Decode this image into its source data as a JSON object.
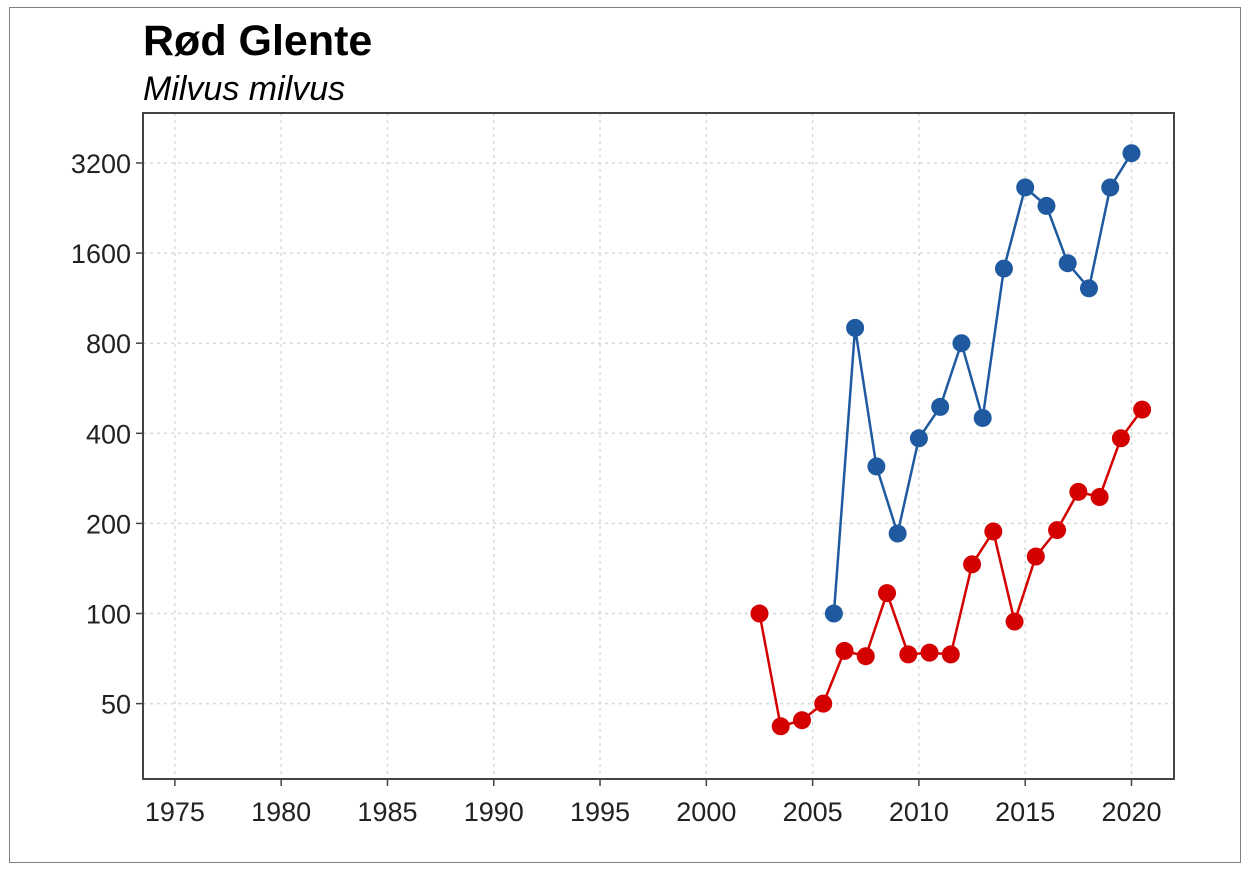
{
  "chart_data": {
    "type": "line",
    "title": "Rød Glente",
    "subtitle": "Milvus milvus",
    "xlabel": "",
    "ylabel": "",
    "y_scale": "log2",
    "xlim": [
      1973.5,
      2022
    ],
    "ylim": [
      28,
      4700
    ],
    "x_ticks": [
      1975,
      1980,
      1985,
      1990,
      1995,
      2000,
      2005,
      2010,
      2015,
      2020
    ],
    "y_ticks": [
      50,
      100,
      200,
      400,
      800,
      1600,
      3200
    ],
    "x_tick_labels": [
      "1975",
      "1980",
      "1985",
      "1990",
      "1995",
      "2000",
      "2005",
      "2010",
      "2015",
      "2020"
    ],
    "y_tick_labels": [
      "50",
      "100",
      "200",
      "400",
      "800",
      "1600",
      "3200"
    ],
    "grid": true,
    "series": [
      {
        "color": "#1f5aa0",
        "x": [
          2006,
          2007,
          2008,
          2009,
          2010,
          2011,
          2012,
          2013,
          2014,
          2015,
          2016,
          2017,
          2018,
          2019,
          2020
        ],
        "values": [
          100,
          900,
          310,
          185,
          385,
          490,
          800,
          450,
          1420,
          2650,
          2300,
          1480,
          1220,
          2650,
          3450
        ]
      },
      {
        "color": "#d40000",
        "x": [
          2002.5,
          2003.5,
          2004.5,
          2005.5,
          2006.5,
          2007.5,
          2008.5,
          2009.5,
          2010.5,
          2011.5,
          2012.5,
          2013.5,
          2014.5,
          2015.5,
          2016.5,
          2017.5,
          2018.5,
          2019.5,
          2020.5
        ],
        "values": [
          100,
          42,
          44,
          50,
          75,
          72,
          117,
          73,
          74,
          73,
          146,
          188,
          94,
          155,
          190,
          255,
          245,
          385,
          480
        ]
      }
    ]
  }
}
